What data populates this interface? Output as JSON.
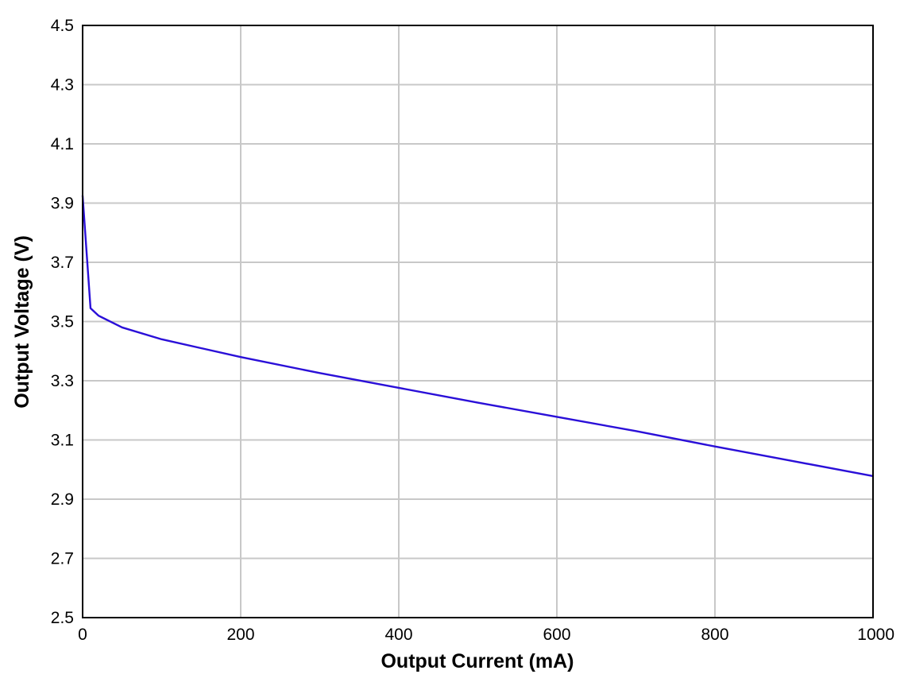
{
  "chart_data": {
    "type": "line",
    "title": "",
    "xlabel": "Output Current (mA)",
    "ylabel": "Output Voltage (V)",
    "xlim": [
      0,
      1000
    ],
    "ylim": [
      2.5,
      4.5
    ],
    "x_ticks": [
      0,
      200,
      400,
      600,
      800,
      1000
    ],
    "y_ticks": [
      2.5,
      2.7,
      2.9,
      3.1,
      3.3,
      3.5,
      3.7,
      3.9,
      4.1,
      4.3,
      4.5
    ],
    "x_tick_labels": [
      "0",
      "200",
      "400",
      "600",
      "800",
      "1000"
    ],
    "y_tick_labels": [
      "2.5",
      "2.7",
      "2.9",
      "3.1",
      "3.3",
      "3.5",
      "3.7",
      "3.9",
      "4.1",
      "4.3",
      "4.5"
    ],
    "grid": true,
    "legend": "none",
    "series": [
      {
        "color": "#2a0fd8",
        "x": [
          0,
          10,
          20,
          50,
          100,
          200,
          300,
          400,
          500,
          600,
          700,
          800,
          900,
          1000
        ],
        "y": [
          3.925,
          3.545,
          3.52,
          3.48,
          3.44,
          3.38,
          3.326,
          3.276,
          3.226,
          3.178,
          3.13,
          3.078,
          3.028,
          2.978
        ]
      }
    ],
    "colors": {
      "grid": "#c8c8c8",
      "frame": "#000000",
      "line": "#2a0fd8"
    }
  }
}
